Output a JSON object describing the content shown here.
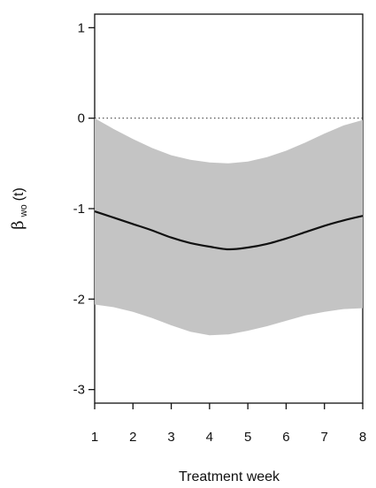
{
  "chart_data": {
    "type": "line",
    "xlabel": "Treatment week",
    "ylabel": {
      "symbol": "β",
      "subscript": "wo",
      "argument": "(t)"
    },
    "x_ticks": [
      "1",
      "2",
      "3",
      "4",
      "5",
      "6",
      "7",
      "8"
    ],
    "y_ticks": [
      "1",
      "0",
      "-1",
      "-2",
      "-3"
    ],
    "xlim": [
      1,
      8
    ],
    "ylim": [
      -3.15,
      1.15
    ],
    "grid": false,
    "reference_line": {
      "y": 0,
      "style": "dotted"
    },
    "x": [
      1,
      1.5,
      2,
      2.5,
      3,
      3.5,
      4,
      4.5,
      5,
      5.5,
      6,
      6.5,
      7,
      7.5,
      8
    ],
    "series": [
      {
        "type": "line",
        "color": "#111111",
        "values": [
          -1.03,
          -1.1,
          -1.17,
          -1.24,
          -1.32,
          -1.38,
          -1.42,
          -1.45,
          -1.43,
          -1.39,
          -1.33,
          -1.26,
          -1.19,
          -1.13,
          -1.08
        ]
      },
      {
        "type": "band",
        "color": "#c4c4c4",
        "upper": [
          0.0,
          -0.12,
          -0.23,
          -0.33,
          -0.41,
          -0.46,
          -0.49,
          -0.5,
          -0.48,
          -0.43,
          -0.36,
          -0.27,
          -0.17,
          -0.08,
          -0.02
        ],
        "lower": [
          -2.06,
          -2.09,
          -2.14,
          -2.21,
          -2.29,
          -2.36,
          -2.4,
          -2.39,
          -2.35,
          -2.3,
          -2.24,
          -2.18,
          -2.14,
          -2.11,
          -2.1
        ]
      }
    ]
  }
}
